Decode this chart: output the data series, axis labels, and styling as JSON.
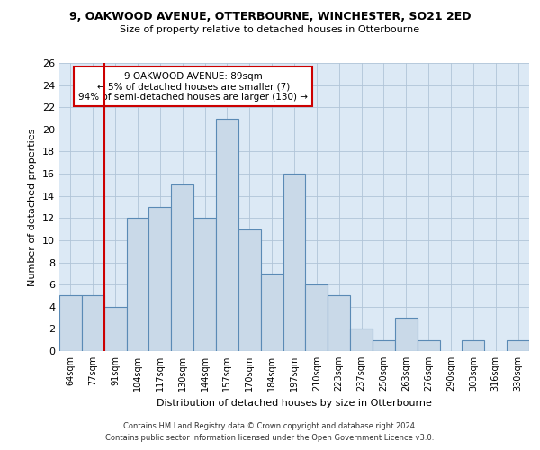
{
  "title_line1": "9, OAKWOOD AVENUE, OTTERBOURNE, WINCHESTER, SO21 2ED",
  "title_line2": "Size of property relative to detached houses in Otterbourne",
  "xlabel": "Distribution of detached houses by size in Otterbourne",
  "ylabel": "Number of detached properties",
  "footer_line1": "Contains HM Land Registry data © Crown copyright and database right 2024.",
  "footer_line2": "Contains public sector information licensed under the Open Government Licence v3.0.",
  "bin_labels": [
    "64sqm",
    "77sqm",
    "91sqm",
    "104sqm",
    "117sqm",
    "130sqm",
    "144sqm",
    "157sqm",
    "170sqm",
    "184sqm",
    "197sqm",
    "210sqm",
    "223sqm",
    "237sqm",
    "250sqm",
    "263sqm",
    "276sqm",
    "290sqm",
    "303sqm",
    "316sqm",
    "330sqm"
  ],
  "bar_values": [
    5,
    5,
    4,
    12,
    13,
    15,
    12,
    21,
    11,
    7,
    16,
    6,
    5,
    2,
    1,
    3,
    1,
    0,
    1,
    0,
    1
  ],
  "bar_color": "#c9d9e8",
  "bar_edge_color": "#5a8ab5",
  "property_label": "9 OAKWOOD AVENUE: 89sqm",
  "annotation_line1": "← 5% of detached houses are smaller (7)",
  "annotation_line2": "94% of semi-detached houses are larger (130) →",
  "vline_color": "#cc0000",
  "annotation_box_color": "#cc0000",
  "ylim": [
    0,
    26
  ],
  "yticks": [
    0,
    2,
    4,
    6,
    8,
    10,
    12,
    14,
    16,
    18,
    20,
    22,
    24,
    26
  ],
  "grid_color": "#b0c4d8",
  "background_color": "#dce9f5"
}
